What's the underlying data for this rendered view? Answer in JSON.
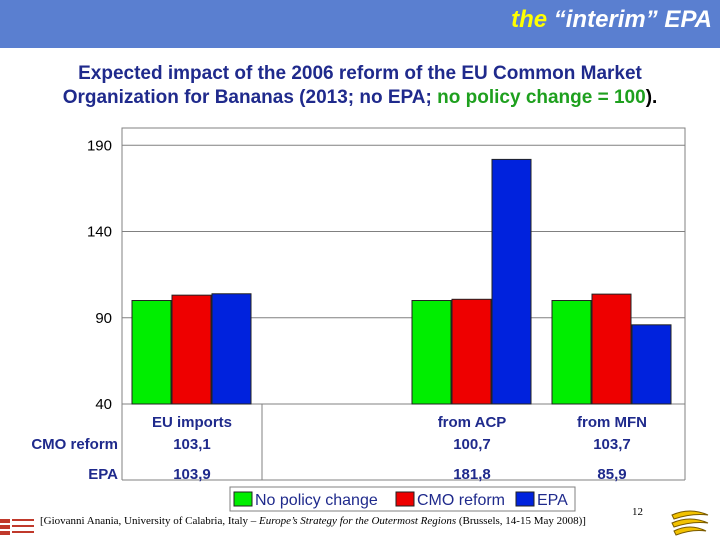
{
  "header": {
    "prefix": "the",
    "rest": "“interim” EPA"
  },
  "slide_title": {
    "line1": "Expected impact of the 2006 reform of the EU Common Market",
    "line2_a": "Organization for Bananas (2013; no EPA;",
    "line2_b": "no policy change = 100",
    "line2_c": ")."
  },
  "colors": {
    "header_bg": "#5a7fd0",
    "title_blue": "#1f2a8c",
    "title_green": "#1ea01e",
    "no_policy": "#00ee00",
    "cmo": "#ee0000",
    "epa": "#0022dd"
  },
  "chart_data": {
    "type": "bar",
    "categories": [
      "EU imports",
      "",
      "from ACP",
      "from MFN"
    ],
    "series": [
      {
        "name": "No policy change",
        "values": [
          100,
          null,
          100,
          100
        ]
      },
      {
        "name": "CMO reform",
        "values": [
          103.1,
          null,
          100.7,
          103.7
        ]
      },
      {
        "name": "EPA",
        "values": [
          103.9,
          null,
          181.8,
          85.9
        ]
      }
    ],
    "yticks": [
      "190",
      "140",
      "90",
      "40"
    ],
    "ytick_values": [
      190,
      140,
      90,
      40
    ],
    "ylim": [
      40,
      200
    ],
    "legend_position": "bottom",
    "table": {
      "rows": [
        {
          "label": "CMO reform",
          "cells": [
            "103,1",
            "",
            "100,7",
            "103,7"
          ]
        },
        {
          "label": "EPA",
          "cells": [
            "103,9",
            "",
            "181,8",
            "85,9"
          ]
        }
      ]
    }
  },
  "footer": {
    "pre": "[Giovanni Anania, University of Calabria, Italy – ",
    "italic": "Europe’s Strategy for the Outermost Regions",
    "post": " (Brussels, 14-15 May 2008)]",
    "page": "12"
  }
}
